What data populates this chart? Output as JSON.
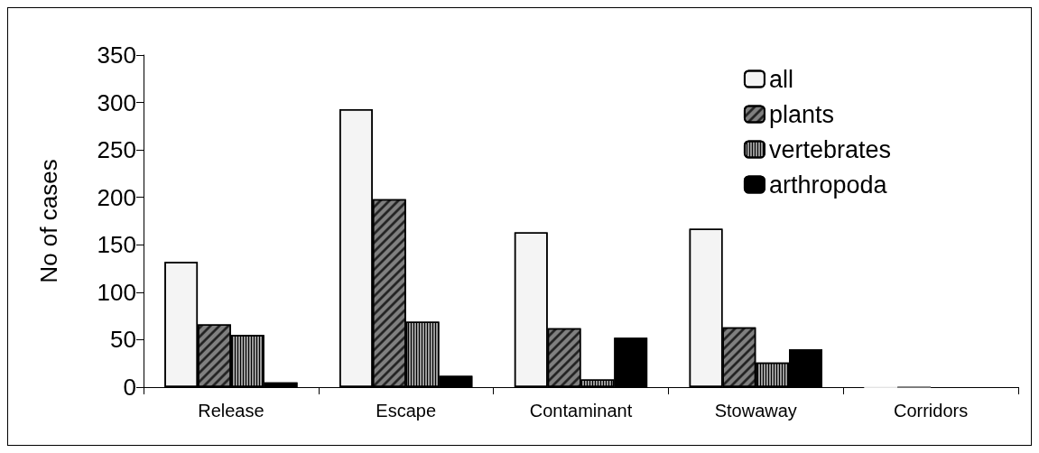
{
  "chart_data": {
    "type": "bar",
    "ylabel": "No of cases",
    "categories": [
      "Release",
      "Escape",
      "Contaminant",
      "Stowaway",
      "Corridors"
    ],
    "series": [
      {
        "name": "all",
        "color": "#f4f4f4",
        "values": [
          132,
          293,
          163,
          167,
          0
        ]
      },
      {
        "name": "plants",
        "color": "#808080",
        "values": [
          66,
          198,
          62,
          63,
          0
        ]
      },
      {
        "name": "vertebrates",
        "color": "#9a9a9a",
        "values": [
          55,
          69,
          8,
          26,
          null
        ]
      },
      {
        "name": "arthropoda",
        "color": "#000000",
        "values": [
          5,
          12,
          52,
          40,
          null
        ]
      }
    ],
    "ylim": [
      0,
      350
    ],
    "yticks": [
      0,
      50,
      100,
      150,
      200,
      250,
      300,
      350
    ],
    "grid": false,
    "legend": "top right"
  }
}
